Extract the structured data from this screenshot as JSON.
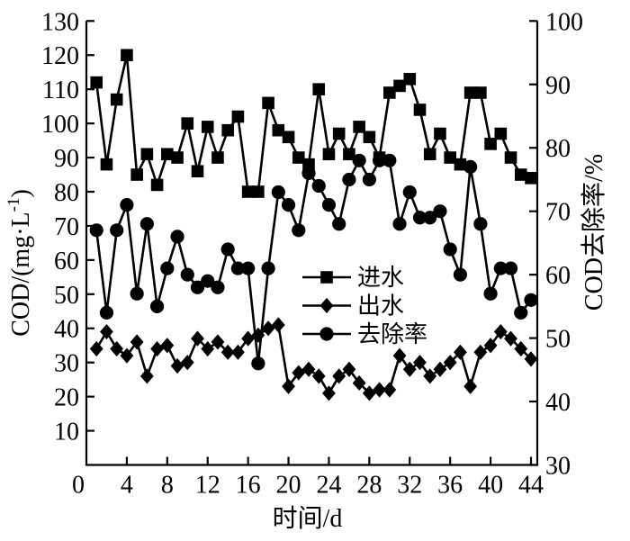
{
  "figure": {
    "background": "#ffffff",
    "ink": "#000000"
  },
  "axes": {
    "x": {
      "label": "时间/d",
      "ticks": [
        0,
        4,
        8,
        12,
        16,
        20,
        24,
        28,
        32,
        36,
        40,
        44
      ],
      "range": [
        0,
        44.6
      ]
    },
    "y_left": {
      "label_text": "COD/(mg·L⁻¹)",
      "label_pre": "COD/(mg·L",
      "label_sup": "-1",
      "label_post": ")",
      "ticks": [
        10,
        20,
        30,
        40,
        50,
        60,
        70,
        80,
        90,
        100,
        110,
        120,
        130
      ],
      "range": [
        0,
        130
      ]
    },
    "y_right": {
      "label": "COD去除率/%",
      "ticks": [
        30,
        40,
        50,
        60,
        70,
        80,
        90,
        100
      ],
      "range": [
        30,
        100
      ]
    }
  },
  "legend": {
    "items": [
      {
        "marker": "square",
        "label": "进水"
      },
      {
        "marker": "diamond",
        "label": "出水"
      },
      {
        "marker": "circle",
        "label": "去除率"
      }
    ]
  },
  "chart_data": {
    "type": "line",
    "title": "",
    "xlabel": "时间/d",
    "ylabel_left": "COD/(mg·L⁻¹)",
    "ylabel_right": "COD去除率/%",
    "x_range": [
      0,
      44.6
    ],
    "y_left_range": [
      0,
      130
    ],
    "y_right_range": [
      30,
      100
    ],
    "grid": false,
    "legend_position": "inside-center-right",
    "x": [
      1,
      2,
      3,
      4,
      5,
      6,
      7,
      8,
      9,
      10,
      11,
      12,
      13,
      14,
      15,
      16,
      17,
      18,
      19,
      20,
      21,
      22,
      23,
      24,
      25,
      26,
      27,
      28,
      29,
      30,
      31,
      32,
      33,
      34,
      35,
      36,
      37,
      38,
      39,
      40,
      41,
      42,
      43,
      44
    ],
    "series": [
      {
        "name": "进水",
        "axis": "left",
        "marker": "square",
        "color": "#000000",
        "values": [
          112,
          88,
          107,
          120,
          85,
          91,
          82,
          91,
          90,
          100,
          86,
          99,
          90,
          98,
          102,
          80,
          80,
          106,
          98,
          96,
          90,
          88,
          110,
          91,
          97,
          91,
          99,
          96,
          90,
          109,
          111,
          113,
          104,
          91,
          97,
          90,
          88,
          109,
          109,
          94,
          97,
          90,
          85,
          84
        ]
      },
      {
        "name": "出水",
        "axis": "left",
        "marker": "diamond",
        "color": "#000000",
        "values": [
          34,
          39,
          34,
          32,
          36,
          26,
          34,
          35,
          29,
          30,
          37,
          34,
          36,
          33,
          33,
          37,
          38,
          40,
          41,
          23,
          27,
          28,
          26,
          21,
          26,
          28,
          24,
          21,
          22,
          22,
          32,
          28,
          30,
          26,
          28,
          30,
          33,
          23,
          33,
          35,
          39,
          37,
          34,
          31
        ]
      },
      {
        "name": "去除率",
        "axis": "right",
        "marker": "circle",
        "color": "#000000",
        "values": [
          67,
          54,
          67,
          71,
          57,
          68,
          55,
          61,
          66,
          60,
          58,
          59,
          58,
          64,
          61,
          61,
          46,
          61,
          73,
          71,
          67,
          76,
          74,
          71,
          68,
          75,
          78,
          75,
          78,
          78,
          68,
          73,
          69,
          69,
          70,
          64,
          60,
          77,
          68,
          57,
          61,
          61,
          54,
          56
        ]
      }
    ]
  }
}
